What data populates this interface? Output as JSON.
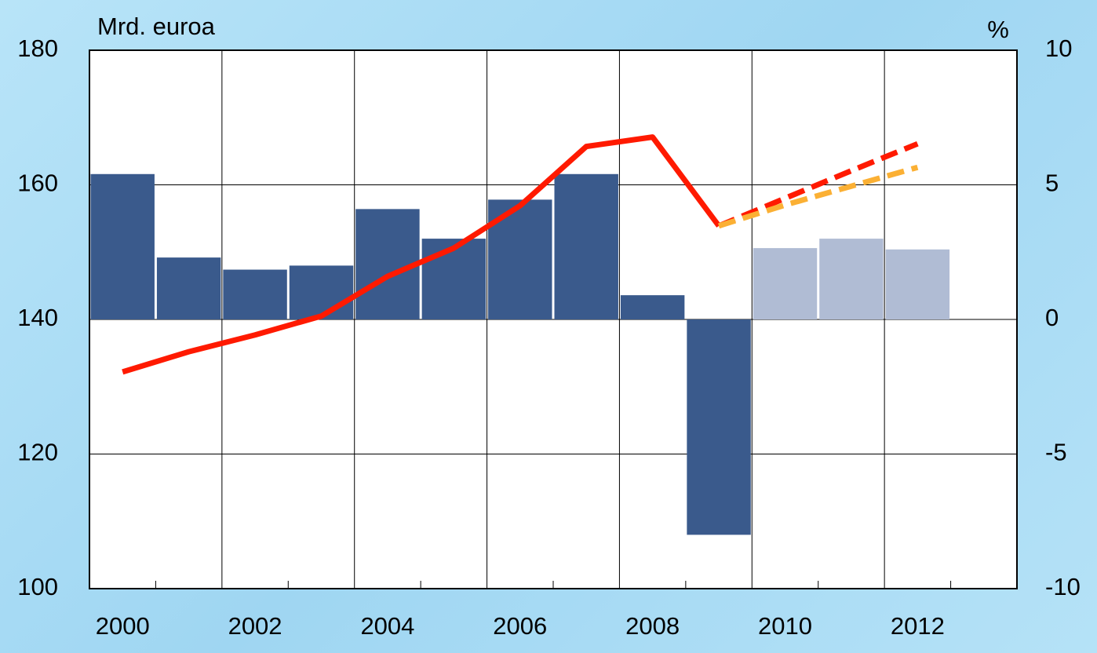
{
  "chart_data": {
    "type": "bar",
    "ylabel": "Mrd. euroa",
    "y2label": "%",
    "categories": [
      "2000",
      null,
      "2002",
      null,
      "2004",
      null,
      "2006",
      null,
      "2008",
      null,
      "2010",
      null,
      "2012",
      null
    ],
    "ylim": [
      100,
      180
    ],
    "yticks": [
      100,
      120,
      140,
      160,
      180
    ],
    "y2lim": [
      -10,
      10
    ],
    "y2ticks": [
      -10,
      -5,
      0,
      5,
      10
    ],
    "grid": true,
    "series": [
      {
        "type": "bar",
        "axis": "y2",
        "color": "#3a5a8c",
        "values": [
          5.4,
          2.3,
          1.85,
          2.0,
          4.1,
          3.0,
          4.45,
          5.4,
          0.9,
          -8.0,
          null,
          null,
          null,
          null
        ]
      },
      {
        "type": "bar",
        "axis": "y2",
        "color": "#b0bcd4",
        "values": [
          null,
          null,
          null,
          null,
          null,
          null,
          null,
          null,
          null,
          null,
          2.65,
          3.0,
          2.6,
          null
        ]
      },
      {
        "type": "line",
        "color": "#ff1a00",
        "values": [
          132.2,
          135.2,
          137.7,
          140.5,
          146.4,
          150.6,
          156.9,
          165.7,
          167.1,
          153.9,
          null,
          null,
          null,
          null
        ]
      },
      {
        "type": "line",
        "color": "#ff1a00",
        "dashed": true,
        "values": [
          null,
          null,
          null,
          null,
          null,
          null,
          null,
          null,
          null,
          153.9,
          158.0,
          162.1,
          166.1,
          null
        ]
      },
      {
        "type": "line",
        "color": "#fbb034",
        "dashed": true,
        "values": [
          null,
          null,
          null,
          null,
          null,
          null,
          null,
          null,
          null,
          153.9,
          157.0,
          159.8,
          162.6,
          null
        ]
      }
    ]
  }
}
